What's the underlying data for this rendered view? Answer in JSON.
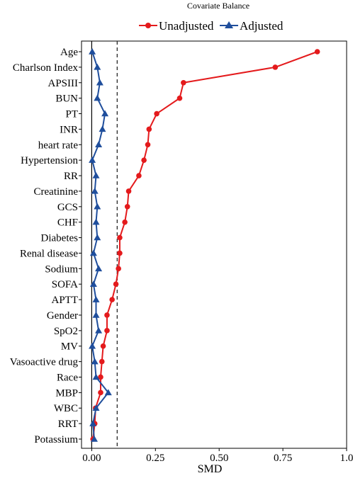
{
  "chart_data": {
    "type": "line",
    "title": "Covariate Balance",
    "xlabel": "SMD",
    "ylabel": "",
    "xlim": [
      -0.04,
      1.0
    ],
    "x_ticks": [
      "0.00",
      "0.25",
      "0.50",
      "0.75",
      "1.0"
    ],
    "x_tick_values": [
      0,
      0.25,
      0.5,
      0.75,
      1.0
    ],
    "threshold": 0.1,
    "zero_line": 0,
    "grid": false,
    "legend_position": "top",
    "categories": [
      "Age",
      "Charlson Index",
      "APSIII",
      "BUN",
      "PT",
      "INR",
      "heart rate",
      "Hypertension",
      "RR",
      "Creatinine",
      "GCS",
      "CHF",
      "Diabetes",
      "Renal disease",
      "Sodium",
      "SOFA",
      "APTT",
      "Gender",
      "SpO2",
      "MV",
      "Vasoactive drug",
      "Race",
      "MBP",
      "WBC",
      "RRT",
      "Potassium"
    ],
    "series": [
      {
        "name": "Unadjusted",
        "color": "#e41a1c",
        "marker": "circle",
        "values": [
          0.885,
          0.72,
          0.36,
          0.345,
          0.255,
          0.225,
          0.22,
          0.205,
          0.185,
          0.145,
          0.14,
          0.13,
          0.11,
          0.11,
          0.105,
          0.095,
          0.08,
          0.06,
          0.06,
          0.045,
          0.04,
          0.035,
          0.035,
          0.015,
          0.012,
          0.005
        ]
      },
      {
        "name": "Adjusted",
        "color": "#1f4e9c",
        "marker": "triangle",
        "values": [
          0.002,
          0.022,
          0.032,
          0.022,
          0.052,
          0.042,
          0.027,
          0.002,
          0.017,
          0.012,
          0.022,
          0.017,
          0.022,
          0.007,
          0.027,
          0.007,
          0.017,
          0.017,
          0.027,
          0.002,
          0.012,
          0.017,
          0.065,
          0.017,
          0.005,
          0.01
        ]
      }
    ]
  }
}
